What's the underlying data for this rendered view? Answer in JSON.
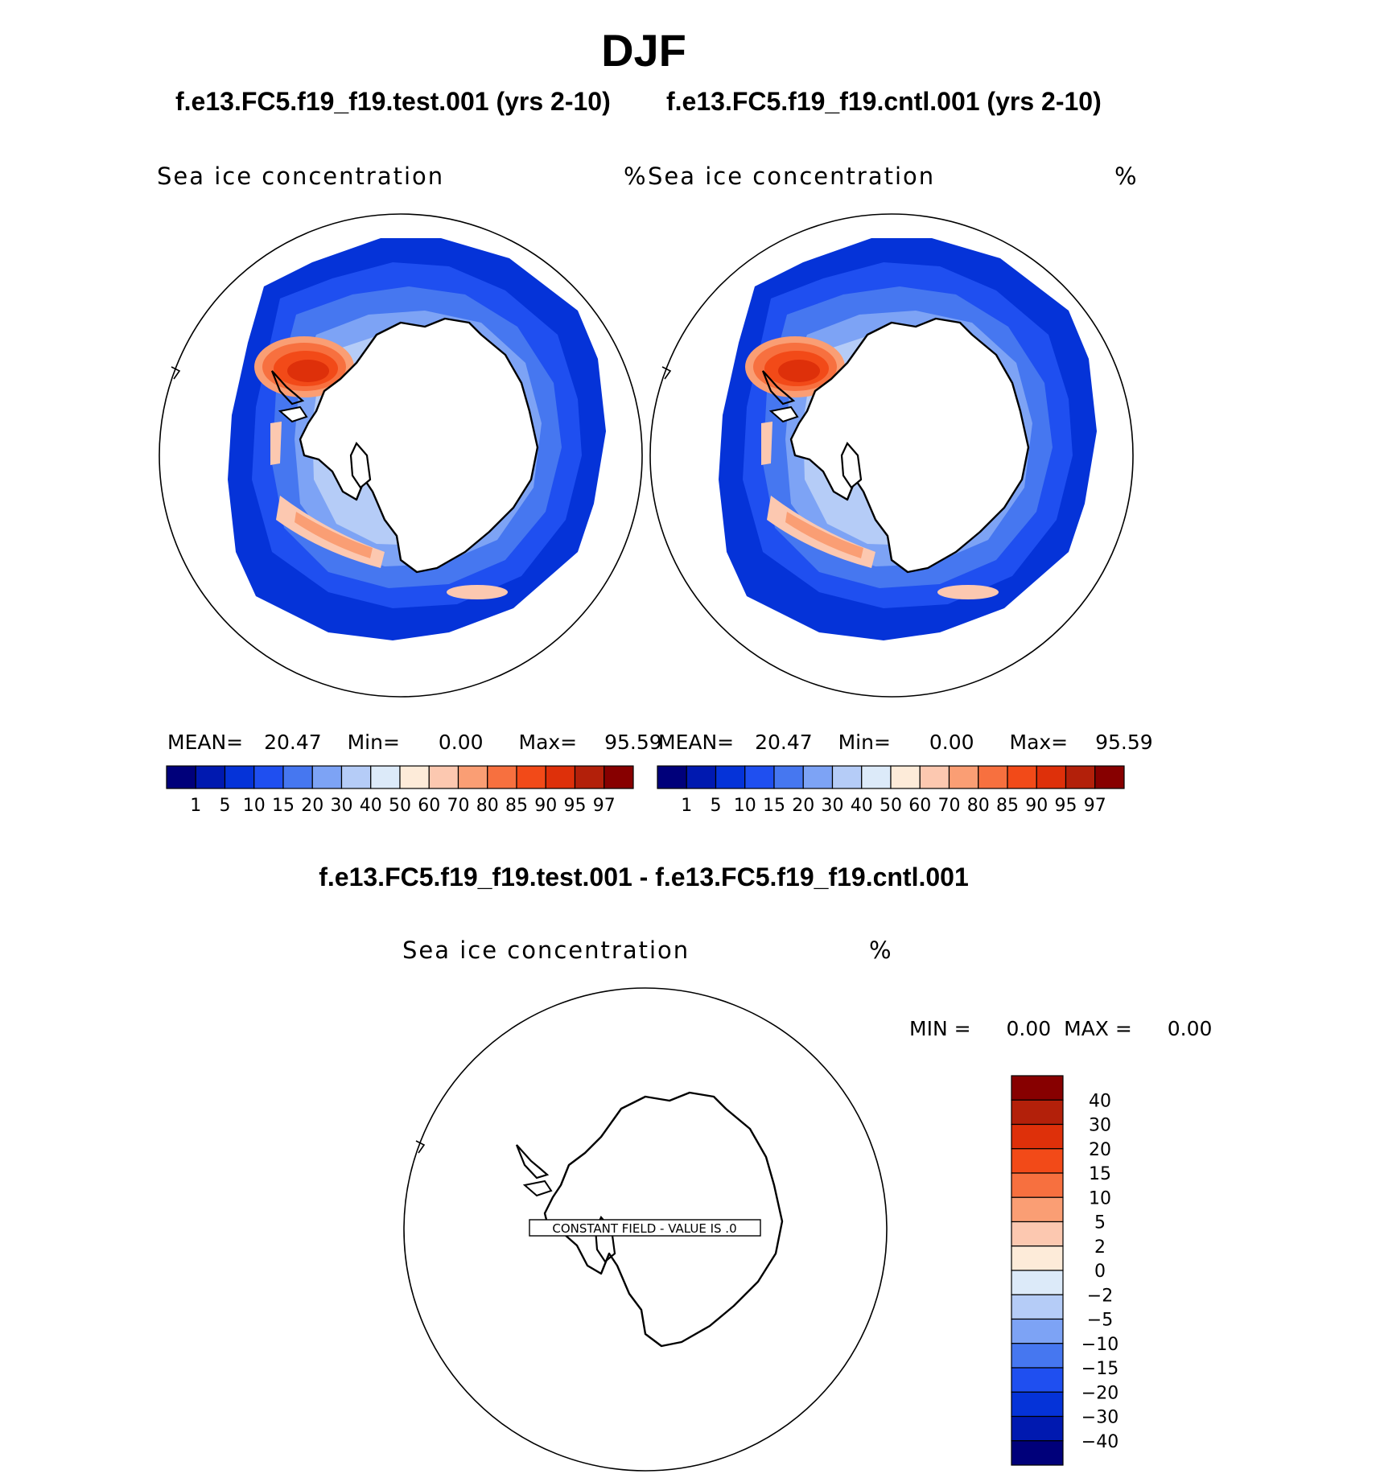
{
  "title": "DJF",
  "panels": [
    {
      "case_title": "f.e13.FC5.f19_f19.test.001 (yrs 2-10)",
      "var_label": "Sea ice concentration",
      "units": "%",
      "stats": {
        "mean_label": "MEAN=",
        "mean": "20.47",
        "min_label": "Min=",
        "min": "0.00",
        "max_label": "Max=",
        "max": "95.59"
      }
    },
    {
      "case_title": "f.e13.FC5.f19_f19.cntl.001 (yrs 2-10)",
      "var_label": "Sea ice concentration",
      "units": "%",
      "stats": {
        "mean_label": "MEAN=",
        "mean": "20.47",
        "min_label": "Min=",
        "min": "0.00",
        "max_label": "Max=",
        "max": "95.59"
      }
    }
  ],
  "colorbar": {
    "labels": [
      "1",
      "5",
      "10",
      "15",
      "20",
      "30",
      "40",
      "50",
      "60",
      "70",
      "80",
      "85",
      "90",
      "95",
      "97"
    ],
    "colors": [
      "#00007a",
      "#0019b0",
      "#0533d8",
      "#1f4ff0",
      "#4677f0",
      "#7da3f5",
      "#b5ccf7",
      "#dceaf9",
      "#fdebd9",
      "#fcc8b0",
      "#fa9e74",
      "#f7703f",
      "#f24a18",
      "#de300a",
      "#b3200a",
      "#870000"
    ]
  },
  "difference": {
    "title": "f.e13.FC5.f19_f19.test.001 - f.e13.FC5.f19_f19.cntl.001",
    "var_label": "Sea ice concentration",
    "units": "%",
    "min_label": "MIN =",
    "min": "0.00",
    "max_label": "MAX =",
    "max": "0.00",
    "constant_text": "CONSTANT FIELD - VALUE IS .0",
    "colorbar_labels": [
      "40",
      "30",
      "20",
      "15",
      "10",
      "5",
      "2",
      "0",
      "−2",
      "−5",
      "−10",
      "−15",
      "−20",
      "−30",
      "−40"
    ],
    "colorbar_colors": [
      "#870000",
      "#b3200a",
      "#de300a",
      "#f24a18",
      "#f7703f",
      "#fa9e74",
      "#fcc8b0",
      "#fdebd9",
      "#dceaf9",
      "#b5ccf7",
      "#7da3f5",
      "#4677f0",
      "#1f4ff0",
      "#0533d8",
      "#0019b0",
      "#00007a"
    ]
  },
  "chart_data": [
    {
      "type": "heatmap",
      "title": "f.e13.FC5.f19_f19.test.001 (yrs 2-10)",
      "variable": "Sea ice concentration",
      "units": "%",
      "region": "Southern Hemisphere polar stereographic",
      "mean": 20.47,
      "min": 0.0,
      "max": 95.59,
      "levels": [
        1,
        5,
        10,
        15,
        20,
        30,
        40,
        50,
        60,
        70,
        80,
        85,
        90,
        95,
        97
      ]
    },
    {
      "type": "heatmap",
      "title": "f.e13.FC5.f19_f19.cntl.001 (yrs 2-10)",
      "variable": "Sea ice concentration",
      "units": "%",
      "region": "Southern Hemisphere polar stereographic",
      "mean": 20.47,
      "min": 0.0,
      "max": 95.59,
      "levels": [
        1,
        5,
        10,
        15,
        20,
        30,
        40,
        50,
        60,
        70,
        80,
        85,
        90,
        95,
        97
      ]
    },
    {
      "type": "heatmap",
      "title": "f.e13.FC5.f19_f19.test.001 - f.e13.FC5.f19_f19.cntl.001",
      "variable": "Sea ice concentration",
      "units": "%",
      "min": 0.0,
      "max": 0.0,
      "levels": [
        -40,
        -30,
        -20,
        -15,
        -10,
        -5,
        -2,
        0,
        2,
        5,
        10,
        15,
        20,
        30,
        40
      ]
    }
  ]
}
